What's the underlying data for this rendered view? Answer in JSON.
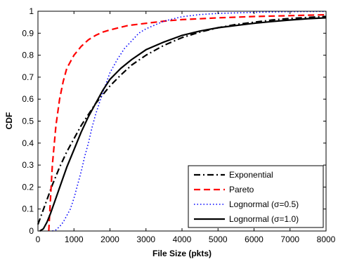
{
  "chart_data": {
    "type": "line",
    "title": "",
    "xlabel": "File Size (pkts)",
    "ylabel": "CDF",
    "xlim": [
      0,
      8000
    ],
    "ylim": [
      0,
      1
    ],
    "x_ticks": [
      0,
      1000,
      2000,
      3000,
      4000,
      5000,
      6000,
      7000,
      8000
    ],
    "x_tick_labels": [
      "0",
      "1000",
      "2000",
      "3000",
      "4000",
      "5000",
      "6000",
      "7000",
      "8000"
    ],
    "y_ticks": [
      0,
      0.1,
      0.2,
      0.3,
      0.4,
      0.5,
      0.6,
      0.7,
      0.8,
      0.9,
      1
    ],
    "y_tick_labels": [
      "0",
      "0.1",
      "0.2",
      "0.3",
      "0.4",
      "0.5",
      "0.6",
      "0.7",
      "0.8",
      "0.9",
      "1"
    ],
    "grid": false,
    "legend_position": "bottom-right",
    "series": [
      {
        "name": "Exponential",
        "color": "#000000",
        "style": "dashdot",
        "x": [
          0,
          200,
          400,
          600,
          800,
          1000,
          1200,
          1400,
          1600,
          1800,
          2000,
          2300,
          2600,
          3000,
          3500,
          4000,
          4500,
          5000,
          5500,
          6000,
          6500,
          7000,
          7500,
          8000
        ],
        "y": [
          0.03,
          0.12,
          0.21,
          0.29,
          0.36,
          0.42,
          0.48,
          0.53,
          0.58,
          0.62,
          0.66,
          0.71,
          0.755,
          0.8,
          0.845,
          0.88,
          0.905,
          0.925,
          0.94,
          0.95,
          0.96,
          0.967,
          0.972,
          0.976
        ]
      },
      {
        "name": "Pareto",
        "color": "#ff0000",
        "style": "dashed",
        "x": [
          300,
          350,
          400,
          500,
          600,
          700,
          800,
          1000,
          1200,
          1400,
          1600,
          1800,
          2000,
          2500,
          3000,
          3500,
          4000,
          5000,
          6000,
          7000,
          8000
        ],
        "y": [
          0.0,
          0.15,
          0.3,
          0.48,
          0.6,
          0.68,
          0.74,
          0.8,
          0.84,
          0.87,
          0.89,
          0.905,
          0.915,
          0.935,
          0.945,
          0.955,
          0.962,
          0.97,
          0.976,
          0.98,
          0.984
        ]
      },
      {
        "name": "Lognormal (σ=0.5)",
        "color": "#0000ff",
        "style": "dotted",
        "x": [
          400,
          500,
          600,
          700,
          800,
          900,
          1000,
          1100,
          1200,
          1300,
          1400,
          1500,
          1600,
          1700,
          1800,
          2000,
          2200,
          2400,
          2600,
          2800,
          3000,
          3500,
          4000,
          4500,
          5000,
          6000,
          7000,
          8000
        ],
        "y": [
          0.0,
          0.005,
          0.02,
          0.04,
          0.07,
          0.1,
          0.15,
          0.21,
          0.27,
          0.34,
          0.4,
          0.47,
          0.53,
          0.58,
          0.63,
          0.72,
          0.78,
          0.83,
          0.865,
          0.9,
          0.92,
          0.955,
          0.975,
          0.985,
          0.99,
          0.995,
          0.998,
          0.999
        ]
      },
      {
        "name": "Lognormal (σ=1.0)",
        "color": "#000000",
        "style": "solid",
        "x": [
          50,
          150,
          250,
          350,
          500,
          650,
          800,
          1000,
          1200,
          1400,
          1600,
          1800,
          2000,
          2300,
          2600,
          3000,
          3500,
          4000,
          4500,
          5000,
          5500,
          6000,
          6500,
          7000,
          7500,
          8000
        ],
        "y": [
          0.0,
          0.01,
          0.04,
          0.08,
          0.15,
          0.22,
          0.29,
          0.37,
          0.45,
          0.52,
          0.58,
          0.64,
          0.69,
          0.74,
          0.78,
          0.825,
          0.86,
          0.89,
          0.91,
          0.925,
          0.935,
          0.945,
          0.953,
          0.96,
          0.966,
          0.97
        ]
      }
    ]
  }
}
